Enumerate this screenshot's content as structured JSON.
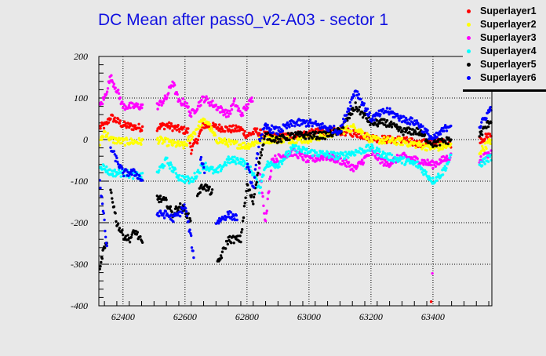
{
  "chart_data": {
    "type": "scatter",
    "title": "DC Mean after pass0_v2-A03 - sector 1",
    "xlabel": "",
    "ylabel": "",
    "xlim": [
      62322,
      63590
    ],
    "ylim": [
      -400,
      200
    ],
    "grid": true,
    "legend_position": "top-right",
    "xticks": [
      "62400",
      "62600",
      "62800",
      "63000",
      "63200",
      "63400"
    ],
    "yticks": [
      "200",
      "100",
      "0",
      "-100",
      "-200",
      "-300",
      "-400"
    ],
    "series": [
      {
        "name": "Superlayer1",
        "color": "#ff0000",
        "points": [
          [
            62325,
            30
          ],
          [
            62345,
            35
          ],
          [
            62360,
            55
          ],
          [
            62400,
            35
          ],
          [
            62440,
            30
          ],
          [
            62465,
            28
          ],
          null,
          [
            62510,
            30
          ],
          [
            62540,
            35
          ],
          [
            62580,
            25
          ],
          [
            62610,
            20
          ],
          [
            62620,
            -25
          ],
          [
            62640,
            0
          ],
          [
            62660,
            35
          ],
          [
            62700,
            30
          ],
          [
            62740,
            25
          ],
          [
            62780,
            25
          ],
          [
            62800,
            10
          ],
          [
            62830,
            20
          ],
          [
            62860,
            10
          ],
          [
            62900,
            5
          ],
          [
            62950,
            10
          ],
          [
            63000,
            15
          ],
          [
            63050,
            20
          ],
          [
            63100,
            20
          ],
          [
            63150,
            15
          ],
          [
            63200,
            5
          ],
          [
            63250,
            0
          ],
          [
            63300,
            0
          ],
          [
            63350,
            -10
          ],
          [
            63400,
            -5
          ],
          [
            63460,
            -10
          ],
          null,
          [
            63550,
            0
          ],
          [
            63590,
            10
          ]
        ],
        "outliers": [
          [
            63394,
            -390
          ]
        ]
      },
      {
        "name": "Superlayer2",
        "color": "#ffff00",
        "points": [
          [
            62325,
            -10
          ],
          [
            62340,
            20
          ],
          [
            62360,
            0
          ],
          [
            62400,
            -5
          ],
          [
            62465,
            -5
          ],
          null,
          [
            62510,
            0
          ],
          [
            62560,
            -10
          ],
          [
            62600,
            -15
          ],
          [
            62650,
            40
          ],
          [
            62670,
            45
          ],
          [
            62700,
            0
          ],
          [
            62750,
            -10
          ],
          [
            62800,
            -15
          ],
          [
            62850,
            0
          ],
          [
            62900,
            0
          ],
          [
            63000,
            0
          ],
          [
            63100,
            20
          ],
          [
            63150,
            30
          ],
          [
            63200,
            0
          ],
          [
            63300,
            -5
          ],
          [
            63400,
            -20
          ],
          [
            63460,
            -15
          ],
          null,
          [
            63550,
            -30
          ],
          [
            63590,
            0
          ]
        ],
        "outliers": []
      },
      {
        "name": "Superlayer3",
        "color": "#ff00ff",
        "points": [
          [
            62325,
            80
          ],
          [
            62340,
            100
          ],
          [
            62360,
            150
          ],
          [
            62380,
            120
          ],
          [
            62400,
            80
          ],
          [
            62465,
            80
          ],
          null,
          [
            62510,
            80
          ],
          [
            62540,
            100
          ],
          [
            62560,
            140
          ],
          [
            62580,
            90
          ],
          [
            62600,
            90
          ],
          [
            62620,
            60
          ],
          [
            62660,
            100
          ],
          [
            62700,
            80
          ],
          [
            62740,
            60
          ],
          [
            62760,
            90
          ],
          [
            62780,
            60
          ],
          [
            62800,
            80
          ],
          [
            62820,
            100
          ],
          null,
          [
            62840,
            -60
          ],
          [
            62860,
            -200
          ],
          [
            62880,
            -50
          ],
          [
            62950,
            -30
          ],
          [
            63000,
            -50
          ],
          [
            63050,
            -40
          ],
          [
            63100,
            -50
          ],
          [
            63150,
            -70
          ],
          [
            63200,
            -30
          ],
          [
            63250,
            -60
          ],
          [
            63300,
            -40
          ],
          [
            63350,
            -50
          ],
          [
            63400,
            -60
          ],
          [
            63460,
            -40
          ],
          null,
          [
            63550,
            -50
          ],
          [
            63590,
            -30
          ]
        ],
        "outliers": [
          [
            63398,
            -322
          ]
        ]
      },
      {
        "name": "Superlayer4",
        "color": "#00ffff",
        "points": [
          [
            62325,
            -60
          ],
          [
            62360,
            -80
          ],
          [
            62400,
            -80
          ],
          [
            62465,
            -90
          ],
          null,
          [
            62510,
            -80
          ],
          [
            62540,
            -50
          ],
          [
            62580,
            -90
          ],
          [
            62620,
            -100
          ],
          [
            62660,
            -60
          ],
          [
            62700,
            -80
          ],
          [
            62740,
            -50
          ],
          [
            62780,
            -50
          ],
          [
            62820,
            -80
          ],
          [
            62840,
            -120
          ],
          [
            62860,
            -60
          ],
          [
            62900,
            -60
          ],
          [
            62950,
            -20
          ],
          [
            63000,
            -30
          ],
          [
            63100,
            -40
          ],
          [
            63200,
            -20
          ],
          [
            63250,
            -40
          ],
          [
            63300,
            -50
          ],
          [
            63350,
            -60
          ],
          [
            63400,
            -100
          ],
          [
            63430,
            -80
          ],
          [
            63460,
            -40
          ],
          null,
          [
            63550,
            -60
          ],
          [
            63590,
            -40
          ]
        ],
        "outliers": []
      },
      {
        "name": "Superlayer5",
        "color": "#000000",
        "points": [
          [
            62325,
            -320
          ],
          [
            62335,
            -270
          ],
          [
            62350,
            -250
          ],
          null,
          [
            62360,
            -120
          ],
          [
            62380,
            -200
          ],
          [
            62400,
            -230
          ],
          [
            62420,
            -240
          ],
          [
            62440,
            -220
          ],
          [
            62465,
            -255
          ],
          null,
          [
            62510,
            -140
          ],
          [
            62540,
            -150
          ],
          [
            62560,
            -180
          ],
          [
            62580,
            -160
          ],
          [
            62600,
            -170
          ],
          [
            62620,
            -200
          ],
          null,
          [
            62640,
            -130
          ],
          [
            62660,
            -110
          ],
          [
            62690,
            -130
          ],
          null,
          [
            62705,
            -300
          ],
          [
            62740,
            -240
          ],
          [
            62780,
            -240
          ],
          [
            62800,
            -110
          ],
          [
            62820,
            -150
          ],
          [
            62840,
            -50
          ],
          [
            62860,
            10
          ],
          [
            62900,
            0
          ],
          [
            62950,
            10
          ],
          [
            63000,
            10
          ],
          [
            63050,
            10
          ],
          [
            63100,
            20
          ],
          [
            63150,
            80
          ],
          [
            63200,
            40
          ],
          [
            63250,
            40
          ],
          [
            63300,
            20
          ],
          [
            63350,
            20
          ],
          [
            63400,
            -10
          ],
          [
            63460,
            0
          ],
          null,
          [
            63550,
            10
          ],
          [
            63590,
            50
          ]
        ],
        "outliers": []
      },
      {
        "name": "Superlayer6",
        "color": "#0000ff",
        "points": [
          [
            62325,
            -100
          ],
          [
            62340,
            -200
          ],
          [
            62350,
            -280
          ],
          null,
          [
            62360,
            -20
          ],
          [
            62380,
            -50
          ],
          [
            62400,
            -80
          ],
          [
            62440,
            -80
          ],
          [
            62465,
            -100
          ],
          null,
          [
            62510,
            -180
          ],
          [
            62540,
            -180
          ],
          [
            62560,
            -190
          ],
          [
            62580,
            -180
          ],
          [
            62600,
            -160
          ],
          [
            62620,
            -240
          ],
          [
            62630,
            -300
          ],
          null,
          [
            62650,
            -40
          ],
          [
            62665,
            -80
          ],
          null,
          [
            62700,
            -200
          ],
          [
            62740,
            -180
          ],
          [
            62770,
            -190
          ],
          null,
          [
            62800,
            -60
          ],
          [
            62820,
            -120
          ],
          [
            62840,
            0
          ],
          [
            62860,
            30
          ],
          [
            62900,
            20
          ],
          [
            62950,
            40
          ],
          [
            63000,
            40
          ],
          [
            63050,
            30
          ],
          [
            63100,
            20
          ],
          [
            63150,
            120
          ],
          [
            63200,
            50
          ],
          [
            63250,
            70
          ],
          [
            63300,
            50
          ],
          [
            63350,
            40
          ],
          [
            63400,
            0
          ],
          [
            63460,
            40
          ],
          null,
          [
            63550,
            30
          ],
          [
            63590,
            80
          ]
        ],
        "outliers": []
      }
    ]
  }
}
